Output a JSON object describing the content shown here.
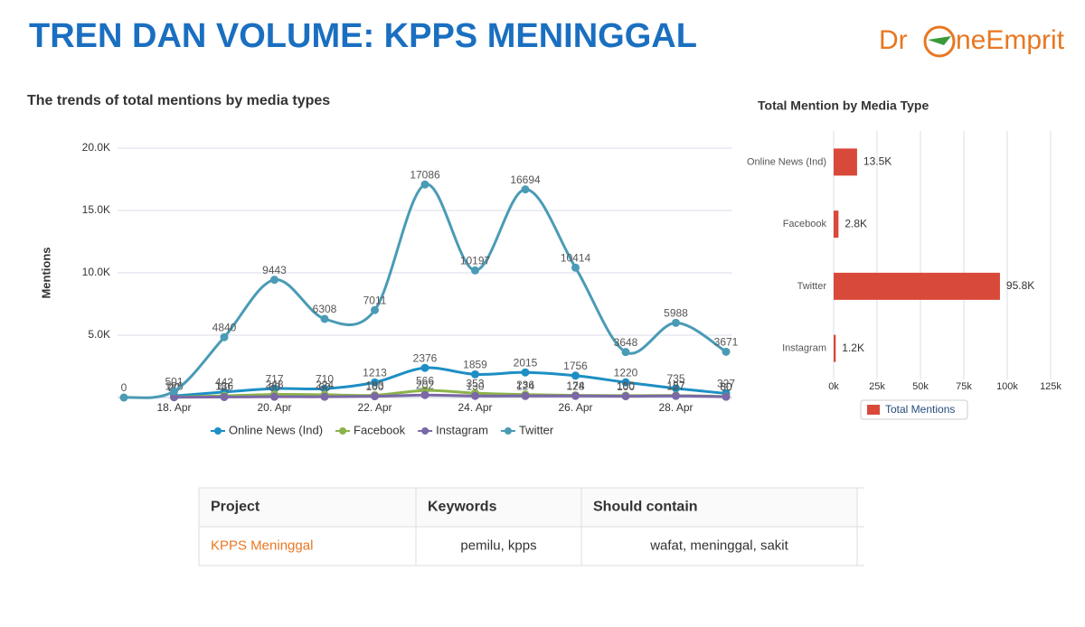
{
  "title": "TREN DAN VOLUME: KPPS MENINGGAL",
  "logo": {
    "left": "Dr",
    "right": "neEmprit"
  },
  "chart_data": [
    {
      "type": "line",
      "title": "The trends of total mentions by media types",
      "y_label": "Mentions",
      "categories": [
        null,
        "18. Apr",
        null,
        "20. Apr",
        null,
        "22. Apr",
        null,
        "24. Apr",
        null,
        "26. Apr",
        null,
        "28. Apr",
        null
      ],
      "series": [
        {
          "name": "Online News (Ind)",
          "color": "#1d8fc4",
          "values": [
            null,
            126,
            442,
            717,
            710,
            1213,
            2376,
            1859,
            2015,
            1756,
            1220,
            735,
            327
          ]
        },
        {
          "name": "Facebook",
          "color": "#8bb34a",
          "values": [
            null,
            40,
            136,
            248,
            224,
            183,
            566,
            353,
            236,
            174,
            150,
            157,
            80
          ]
        },
        {
          "name": "Instagram",
          "color": "#7b68a6",
          "values": [
            null,
            20,
            40,
            60,
            60,
            100,
            202,
            130,
            124,
            128,
            100,
            127,
            60
          ]
        },
        {
          "name": "Twitter",
          "color": "#4a9bb5",
          "values": [
            0,
            501,
            4840,
            9443,
            6308,
            7011,
            17086,
            10197,
            16694,
            10414,
            3648,
            5988,
            3671
          ]
        }
      ],
      "ylim": [
        0,
        20000
      ],
      "yticks": [
        {
          "value": 5000,
          "label": "5.0K"
        },
        {
          "value": 10000,
          "label": "10.0K"
        },
        {
          "value": 15000,
          "label": "15.0K"
        },
        {
          "value": 20000,
          "label": "20.0K"
        }
      ],
      "grid": true,
      "legend": "bottom"
    },
    {
      "type": "hbar",
      "title": "Total Mention by Media Type",
      "categories": [
        "Online News (Ind)",
        "Facebook",
        "Twitter",
        "Instagram"
      ],
      "series": [
        {
          "name": "Total Mentions",
          "color": "#d9493a",
          "values": [
            13500,
            2800,
            95800,
            1200
          ],
          "value_labels": [
            "13.5K",
            "2.8K",
            "95.8K",
            "1.2K"
          ]
        }
      ],
      "xlim": [
        0,
        125000
      ],
      "xticks": [
        {
          "value": 0,
          "label": "0k"
        },
        {
          "value": 25000,
          "label": "25k"
        },
        {
          "value": 50000,
          "label": "50k"
        },
        {
          "value": 75000,
          "label": "75k"
        },
        {
          "value": 100000,
          "label": "100k"
        },
        {
          "value": 125000,
          "label": "125k"
        }
      ],
      "grid": true,
      "legend": "bottom"
    }
  ],
  "table": {
    "header": [
      "Project",
      "Keywords",
      "Should contain"
    ],
    "rows": [
      [
        "KPPS Meninggal",
        "pemilu, kpps",
        "wafat, meninggal, sakit"
      ]
    ]
  }
}
